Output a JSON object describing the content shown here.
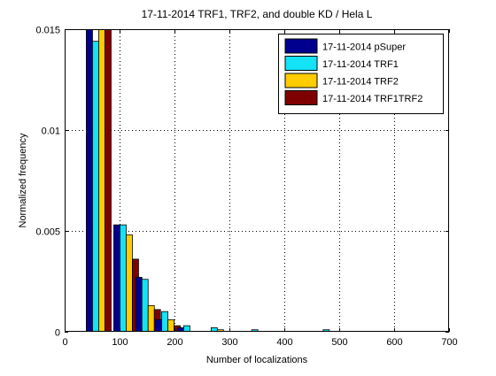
{
  "chart_data": {
    "type": "bar",
    "title": "17-11-2014 TRF1, TRF2, and double KD / Hela L",
    "xlabel": "Number of localizations",
    "ylabel": "Normalized frequency",
    "xlim": [
      0,
      700
    ],
    "ylim": [
      0,
      0.015
    ],
    "xticks": [
      0,
      100,
      200,
      300,
      400,
      500,
      600,
      700
    ],
    "xtick_labels": [
      "0",
      "100",
      "200",
      "300",
      "400",
      "500",
      "600",
      "700"
    ],
    "yticks": [
      0,
      0.005,
      0.01,
      0.015
    ],
    "ytick_labels": [
      "0",
      "0.005",
      "0.01",
      "0.015"
    ],
    "grid": true,
    "legend_position": "top-right",
    "bin_centers": [
      62,
      112,
      152,
      188,
      228,
      278,
      352,
      482
    ],
    "series": [
      {
        "name": "17-11-2014 pSuper",
        "color": "#00008f",
        "values": [
          0.0155,
          0.0053,
          0.0027,
          0.0006,
          0.0002,
          0.0,
          0.0,
          0.0
        ]
      },
      {
        "name": "17-11-2014 TRF1",
        "color": "#13e2f7",
        "values": [
          0.0144,
          0.0053,
          0.0026,
          0.001,
          0.0003,
          0.0002,
          0.0001,
          0.0001
        ]
      },
      {
        "name": "17-11-2014 TRF2",
        "color": "#ffcc00",
        "values": [
          0.0155,
          0.0048,
          0.0013,
          0.0006,
          0.0,
          0.0001,
          0.0,
          0.0
        ]
      },
      {
        "name": "17-11-2014 TRF1TRF2",
        "color": "#7f0000",
        "values": [
          0.0155,
          0.0036,
          0.0011,
          0.0003,
          0.0,
          0.0,
          0.0,
          0.0
        ]
      }
    ]
  }
}
